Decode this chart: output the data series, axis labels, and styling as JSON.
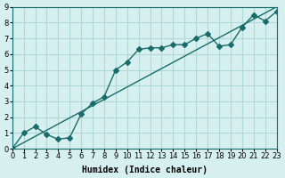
{
  "xlabel": "Humidex (Indice chaleur)",
  "ylabel": "",
  "xlim": [
    0,
    23
  ],
  "ylim": [
    0,
    9
  ],
  "xticks": [
    0,
    1,
    2,
    3,
    4,
    5,
    6,
    7,
    8,
    9,
    10,
    11,
    12,
    13,
    14,
    15,
    16,
    17,
    18,
    19,
    20,
    21,
    22,
    23
  ],
  "yticks": [
    0,
    1,
    2,
    3,
    4,
    5,
    6,
    7,
    8,
    9
  ],
  "background_color": "#d6f0ef",
  "grid_color": "#b0d8d8",
  "line_color": "#1a6b6b",
  "line1_x": [
    0,
    1,
    2,
    3,
    4,
    5,
    6,
    7,
    8,
    9,
    10,
    11,
    12,
    13,
    14,
    15,
    16,
    17,
    18,
    19,
    20,
    21,
    22,
    23
  ],
  "line1_y": [
    0,
    1,
    1.4,
    0.9,
    0.6,
    0.7,
    2.2,
    2.9,
    3.3,
    5.0,
    5.5,
    6.3,
    6.4,
    6.4,
    6.6,
    6.6,
    7.0,
    7.3,
    6.5,
    6.6,
    7.7,
    8.5,
    8.1,
    8.7
  ],
  "line2_x": [
    0,
    23
  ],
  "line2_y": [
    0,
    9
  ],
  "marker_size": 3,
  "line_width": 1.0,
  "tick_fontsize": 6,
  "xlabel_fontsize": 7
}
